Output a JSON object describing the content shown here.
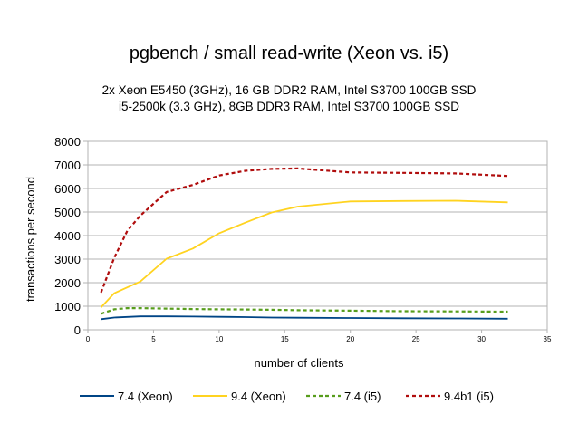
{
  "chart_data": {
    "type": "line",
    "title": "pgbench / small read-write (Xeon vs. i5)",
    "subtitle": [
      "2x Xeon E5450 (3GHz), 16 GB DDR2 RAM, Intel S3700 100GB SSD",
      "i5-2500k (3.3 GHz), 8GB DDR3 RAM, Intel S3700 100GB SSD"
    ],
    "xlabel": "number of clients",
    "ylabel": "transactions per second",
    "xlim": [
      0,
      35
    ],
    "ylim": [
      0,
      8000
    ],
    "xticks": [
      0,
      5,
      10,
      15,
      20,
      25,
      30,
      35
    ],
    "yticks": [
      0,
      1000,
      2000,
      3000,
      4000,
      5000,
      6000,
      7000,
      8000
    ],
    "legend_position": "bottom",
    "series": [
      {
        "name": "7.4 (Xeon)",
        "color": "#004586",
        "dash": "solid",
        "x": [
          1,
          2,
          4,
          6,
          8,
          10,
          12,
          14,
          16,
          20,
          24,
          28,
          32
        ],
        "y": [
          450,
          520,
          570,
          570,
          560,
          550,
          540,
          520,
          510,
          500,
          490,
          480,
          470
        ]
      },
      {
        "name": "9.4 (Xeon)",
        "color": "#ffd320",
        "dash": "solid",
        "x": [
          1,
          2,
          4,
          6,
          8,
          10,
          12,
          14,
          16,
          20,
          24,
          28,
          32
        ],
        "y": [
          950,
          1550,
          2050,
          3020,
          3450,
          4100,
          4550,
          4980,
          5230,
          5450,
          5470,
          5480,
          5410
        ]
      },
      {
        "name": "7.4 (i5)",
        "color": "#579d1c",
        "dash": "dashed",
        "x": [
          1,
          2,
          3,
          4,
          6,
          8,
          10,
          12,
          14,
          16,
          20,
          24,
          28,
          32
        ],
        "y": [
          680,
          870,
          920,
          920,
          900,
          880,
          870,
          860,
          850,
          830,
          810,
          790,
          780,
          770
        ]
      },
      {
        "name": "9.4b1 (i5)",
        "color": "#b00d0d",
        "dash": "dashed",
        "x": [
          1,
          2,
          3,
          4,
          6,
          8,
          10,
          12,
          14,
          16,
          20,
          24,
          28,
          32
        ],
        "y": [
          1580,
          3050,
          4200,
          4850,
          5850,
          6150,
          6550,
          6750,
          6830,
          6850,
          6680,
          6660,
          6640,
          6530
        ]
      }
    ]
  }
}
